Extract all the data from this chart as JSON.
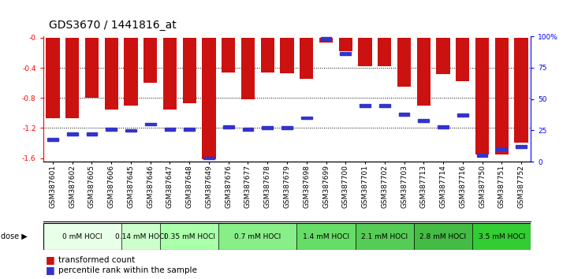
{
  "title": "GDS3670 / 1441816_at",
  "samples": [
    "GSM387601",
    "GSM387602",
    "GSM387605",
    "GSM387606",
    "GSM387645",
    "GSM387646",
    "GSM387647",
    "GSM387648",
    "GSM387649",
    "GSM387676",
    "GSM387677",
    "GSM387678",
    "GSM387679",
    "GSM387698",
    "GSM387699",
    "GSM387700",
    "GSM387701",
    "GSM387702",
    "GSM387703",
    "GSM387713",
    "GSM387714",
    "GSM387716",
    "GSM387750",
    "GSM387751",
    "GSM387752"
  ],
  "transformed_count": [
    -1.07,
    -1.07,
    -0.8,
    -0.95,
    -0.9,
    -0.6,
    -0.95,
    -0.87,
    -1.62,
    -0.46,
    -0.82,
    -0.46,
    -0.47,
    -0.55,
    -0.06,
    -0.18,
    -0.38,
    -0.38,
    -0.65,
    -0.9,
    -0.48,
    -0.58,
    -1.55,
    -1.55,
    -1.4
  ],
  "percentile_rank": [
    18,
    22,
    22,
    26,
    25,
    30,
    26,
    26,
    3,
    28,
    26,
    27,
    27,
    35,
    98,
    86,
    45,
    45,
    38,
    33,
    28,
    37,
    5,
    10,
    12
  ],
  "dose_groups": [
    {
      "label": "0 mM HOCl",
      "start": 0,
      "end": 3,
      "color": "#e8ffe8"
    },
    {
      "label": "0.14 mM HOCl",
      "start": 4,
      "end": 5,
      "color": "#ccffcc"
    },
    {
      "label": "0.35 mM HOCl",
      "start": 6,
      "end": 8,
      "color": "#aaffaa"
    },
    {
      "label": "0.7 mM HOCl",
      "start": 9,
      "end": 12,
      "color": "#88ee88"
    },
    {
      "label": "1.4 mM HOCl",
      "start": 13,
      "end": 15,
      "color": "#66dd66"
    },
    {
      "label": "2.1 mM HOCl",
      "start": 16,
      "end": 18,
      "color": "#55cc55"
    },
    {
      "label": "2.8 mM HOCl",
      "start": 19,
      "end": 21,
      "color": "#44bb44"
    },
    {
      "label": "3.5 mM HOCl",
      "start": 22,
      "end": 24,
      "color": "#33cc33"
    }
  ],
  "ymin": -1.65,
  "ymax": 0.02,
  "yticks_left": [
    0.0,
    -0.4,
    -0.8,
    -1.2,
    -1.6
  ],
  "ytick_labels_left": [
    "-0",
    "-0.4",
    "-0.8",
    "-1.2",
    "-1.6"
  ],
  "yticks_right_pct": [
    100,
    75,
    50,
    25,
    0
  ],
  "ytick_labels_right": [
    "100%",
    "75",
    "50",
    "25",
    "0"
  ],
  "bar_color": "#cc1111",
  "percentile_color": "#3333cc",
  "title_fontsize": 10,
  "tick_fontsize": 6.5,
  "dose_fontsize": 6.5,
  "legend_fontsize": 7.5
}
